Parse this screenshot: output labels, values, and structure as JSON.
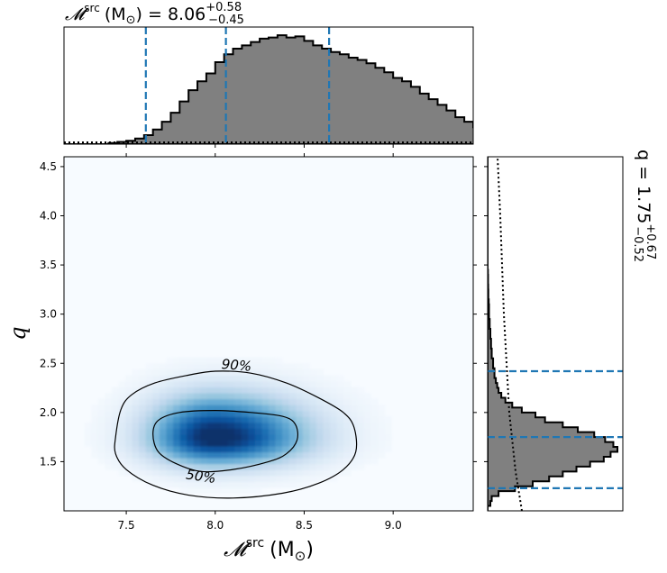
{
  "chart_data": {
    "type": "heatmap",
    "figure": "corner-plot",
    "mchirp_axis": {
      "label": "𝓜",
      "label_sup": "src",
      "label_unit": "(M",
      "label_unit_sub": "⊙",
      "label_close": ")",
      "xlim": [
        7.15,
        9.45
      ],
      "ticks": [
        7.5,
        8.0,
        8.5,
        9.0
      ],
      "tick_labels": [
        "7.5",
        "8.0",
        "8.5",
        "9.0"
      ]
    },
    "q_axis": {
      "label": "q",
      "ylim": [
        1.0,
        4.6
      ],
      "ticks": [
        1.5,
        2.0,
        2.5,
        3.0,
        3.5,
        4.0,
        4.5
      ],
      "tick_labels": [
        "1.5",
        "2.0",
        "2.5",
        "3.0",
        "3.5",
        "4.0",
        "4.5"
      ]
    },
    "mchirp_marginal": {
      "title_main": "𝓜",
      "title_sup": "src",
      "title_unit": "(M",
      "title_unit_sub": "⊙",
      "title_close": ") = 8.06",
      "title_plus": "+0.58",
      "title_minus": "−0.45",
      "median": 8.06,
      "lower": 7.61,
      "upper": 8.64,
      "bin_width": 0.05,
      "bins_start": 7.15,
      "counts": [
        0.0,
        0.0,
        0.0,
        0.0,
        0.0,
        0.01,
        0.02,
        0.03,
        0.05,
        0.08,
        0.13,
        0.2,
        0.28,
        0.38,
        0.48,
        0.56,
        0.63,
        0.73,
        0.8,
        0.85,
        0.88,
        0.91,
        0.94,
        0.95,
        0.97,
        0.95,
        0.96,
        0.92,
        0.88,
        0.85,
        0.82,
        0.8,
        0.77,
        0.75,
        0.72,
        0.68,
        0.64,
        0.59,
        0.56,
        0.51,
        0.45,
        0.4,
        0.35,
        0.3,
        0.24,
        0.2,
        0.15,
        0.12,
        0.1,
        0.08,
        0.06,
        0.05,
        0.04,
        0.03,
        0.02,
        0.02,
        0.01,
        0.01,
        0.01,
        0.0,
        0.0,
        0.0,
        0.0,
        0.0,
        0.0,
        0.0
      ]
    },
    "q_marginal": {
      "title_main": "q = 1.75",
      "title_plus": "+0.67",
      "title_minus": "−0.52",
      "median": 1.75,
      "lower": 1.23,
      "upper": 2.42,
      "bin_width": 0.05,
      "bins_start": 1.0,
      "counts": [
        0.0,
        0.02,
        0.03,
        0.08,
        0.2,
        0.33,
        0.45,
        0.55,
        0.65,
        0.75,
        0.85,
        0.9,
        0.95,
        0.92,
        0.86,
        0.78,
        0.66,
        0.55,
        0.42,
        0.35,
        0.25,
        0.18,
        0.13,
        0.1,
        0.08,
        0.07,
        0.06,
        0.05,
        0.05,
        0.04,
        0.04,
        0.03,
        0.03,
        0.025,
        0.025,
        0.02,
        0.02,
        0.015,
        0.015,
        0.01,
        0.01,
        0.01,
        0.008,
        0.005,
        0.005,
        0.004,
        0.003,
        0.003,
        0.002,
        0.0,
        0.0,
        0.0,
        0.0,
        0.0,
        0.0,
        0.0,
        0.0,
        0.0,
        0.0,
        0.0,
        0.0,
        0.0,
        0.0,
        0.0,
        0.0,
        0.0,
        0.0,
        0.0,
        0.0,
        0.0,
        0.0,
        0.0
      ]
    },
    "joint": {
      "peak": {
        "mchirp": 8.0,
        "q": 1.75
      },
      "colormap": [
        "#f7fbff",
        "#deebf7",
        "#c6dbef",
        "#9ecae1",
        "#6baed6",
        "#4292c6",
        "#2171b5",
        "#08519c",
        "#08306b"
      ],
      "contours": [
        {
          "label": "50%",
          "label_at": {
            "mchirp": 7.92,
            "q": 1.35
          },
          "path": [
            [
              7.65,
              1.78
            ],
            [
              7.68,
              1.92
            ],
            [
              7.8,
              2.0
            ],
            [
              8.0,
              2.02
            ],
            [
              8.2,
              2.0
            ],
            [
              8.38,
              1.96
            ],
            [
              8.45,
              1.88
            ],
            [
              8.46,
              1.72
            ],
            [
              8.4,
              1.58
            ],
            [
              8.3,
              1.5
            ],
            [
              8.1,
              1.42
            ],
            [
              7.92,
              1.4
            ],
            [
              7.78,
              1.48
            ],
            [
              7.68,
              1.6
            ],
            [
              7.65,
              1.78
            ]
          ]
        },
        {
          "label": "90%",
          "label_at": {
            "mchirp": 8.12,
            "q": 2.48
          },
          "path": [
            [
              7.44,
              1.75
            ],
            [
              7.47,
              2.03
            ],
            [
              7.53,
              2.18
            ],
            [
              7.66,
              2.3
            ],
            [
              7.85,
              2.38
            ],
            [
              8.0,
              2.42
            ],
            [
              8.2,
              2.4
            ],
            [
              8.4,
              2.3
            ],
            [
              8.58,
              2.15
            ],
            [
              8.72,
              2.0
            ],
            [
              8.78,
              1.85
            ],
            [
              8.79,
              1.6
            ],
            [
              8.72,
              1.42
            ],
            [
              8.58,
              1.28
            ],
            [
              8.38,
              1.18
            ],
            [
              8.1,
              1.13
            ],
            [
              7.85,
              1.16
            ],
            [
              7.65,
              1.26
            ],
            [
              7.5,
              1.42
            ],
            [
              7.44,
              1.58
            ],
            [
              7.44,
              1.75
            ]
          ]
        }
      ]
    },
    "colors": {
      "hist_fill": "#808080",
      "hist_edge": "#000000",
      "quantile_line": "#1f77b4",
      "contour": "#000000"
    }
  }
}
